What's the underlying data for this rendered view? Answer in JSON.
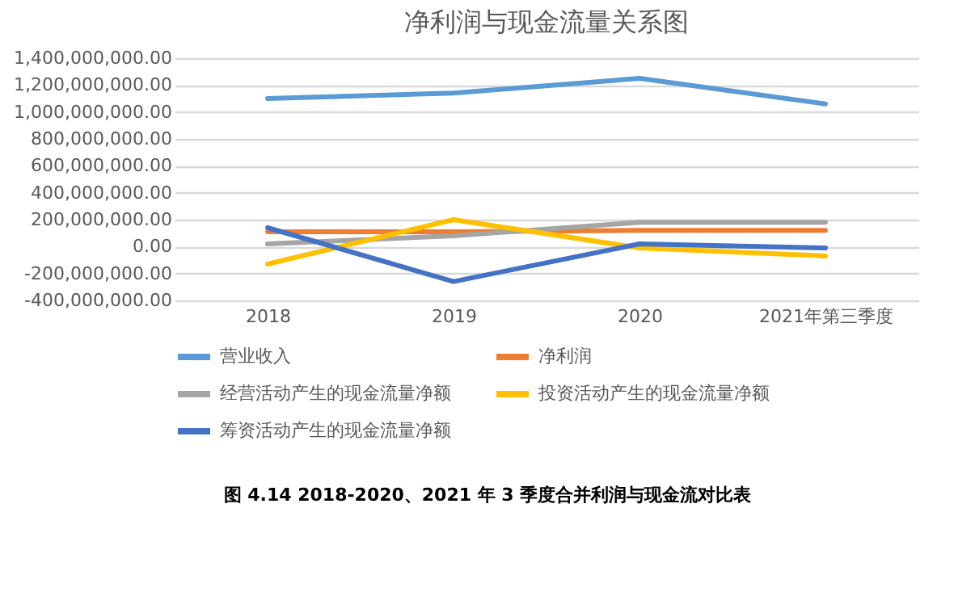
{
  "chart_data": {
    "type": "line",
    "title": "净利润与现金流量关系图",
    "categories": [
      "2018",
      "2019",
      "2020",
      "2021年第三季度"
    ],
    "series": [
      {
        "name": "营业收入",
        "color": "#5b9bd5",
        "values": [
          1100000000,
          1140000000,
          1250000000,
          1060000000
        ]
      },
      {
        "name": "净利润",
        "color": "#ed7d31",
        "values": [
          110000000,
          110000000,
          120000000,
          120000000
        ]
      },
      {
        "name": "经营活动产生的现金流量净额",
        "color": "#a5a5a5",
        "values": [
          20000000,
          80000000,
          180000000,
          180000000
        ]
      },
      {
        "name": "投资活动产生的现金流量净额",
        "color": "#ffc000",
        "values": [
          -130000000,
          200000000,
          -10000000,
          -70000000
        ]
      },
      {
        "name": "筹资活动产生的现金流量净额",
        "color": "#4472c4",
        "values": [
          140000000,
          -260000000,
          20000000,
          -10000000
        ]
      }
    ],
    "ylim": [
      -400000000,
      1400000000
    ],
    "yticks": [
      {
        "value": -400000000,
        "label": "-400,000,000.00"
      },
      {
        "value": -200000000,
        "label": "-200,000,000.00"
      },
      {
        "value": 0,
        "label": "0.00"
      },
      {
        "value": 200000000,
        "label": "200,000,000.00"
      },
      {
        "value": 400000000,
        "label": "400,000,000.00"
      },
      {
        "value": 600000000,
        "label": "600,000,000.00"
      },
      {
        "value": 800000000,
        "label": "800,000,000.00"
      },
      {
        "value": 1000000000,
        "label": "1,000,000,000.00"
      },
      {
        "value": 1200000000,
        "label": "1,200,000,000.00"
      },
      {
        "value": 1400000000,
        "label": "1,400,000,000.00"
      }
    ],
    "grid": "y",
    "legend": "bottom",
    "marker": "none",
    "line_style": "solid",
    "annotations": [
      "图 4.14 2018-2020、2021 年 3 季度合并利润与现金流对比表"
    ]
  }
}
